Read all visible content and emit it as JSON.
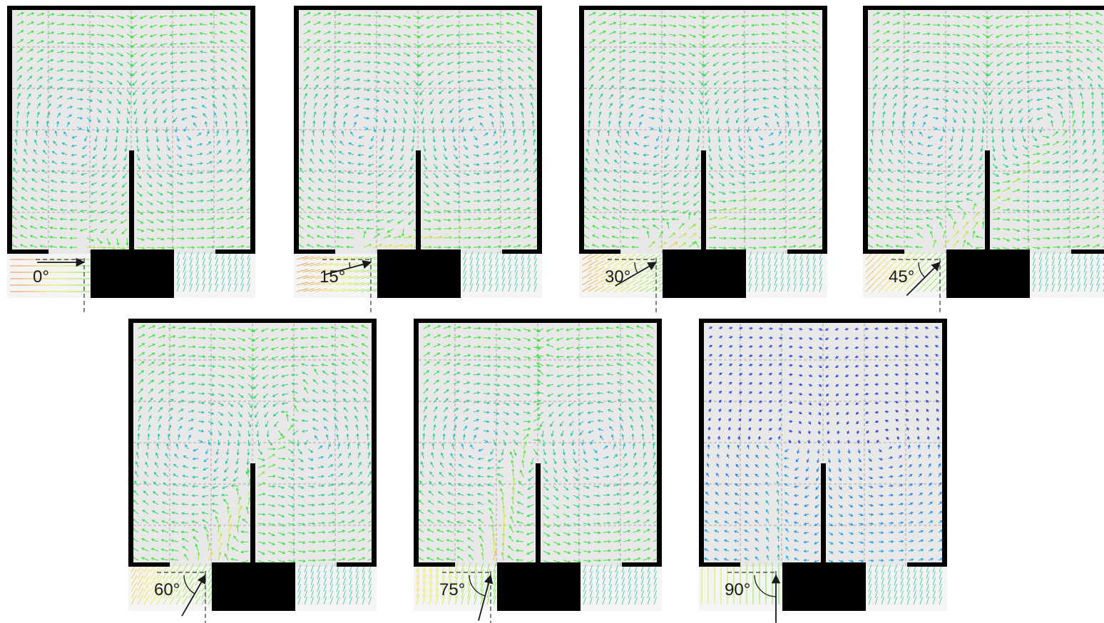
{
  "figure": {
    "panels": [
      {
        "angle_label": "0°",
        "angle_deg": 0
      },
      {
        "angle_label": "15°",
        "angle_deg": 15
      },
      {
        "angle_label": "30°",
        "angle_deg": 30
      },
      {
        "angle_label": "45°",
        "angle_deg": 45
      },
      {
        "angle_label": "60°",
        "angle_deg": 60
      },
      {
        "angle_label": "75°",
        "angle_deg": 75
      },
      {
        "angle_label": "90°",
        "angle_deg": 90
      }
    ],
    "colors": {
      "wall": "#000000",
      "domain_background": "#e8e8e8",
      "grid": "#8c8c8c",
      "vector_low": "#2a1fe0",
      "vector_mid": "#1fb0e6",
      "vector_high": "#39e63a",
      "vector_max": "#f2e93a",
      "vector_extreme": "#e6512b"
    }
  }
}
